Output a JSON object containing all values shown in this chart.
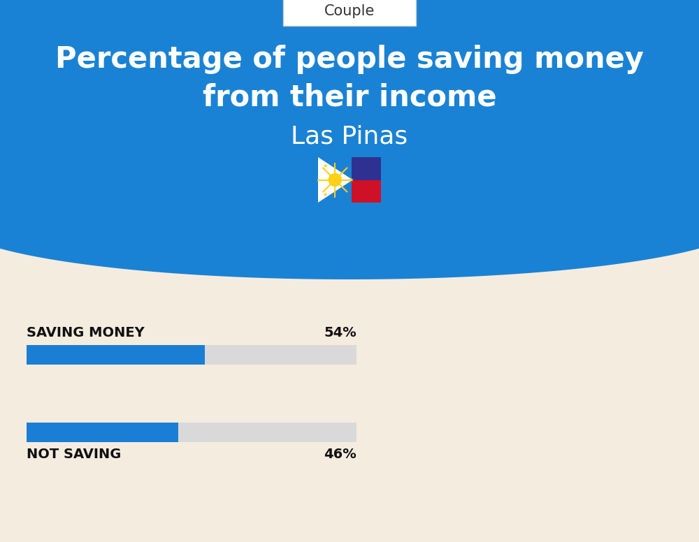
{
  "title_line1": "Percentage of people saving money",
  "title_line2": "from their income",
  "subtitle": "Las Pinas",
  "tab_label": "Couple",
  "saving_label": "SAVING MONEY",
  "saving_value": 54,
  "saving_pct_text": "54%",
  "not_saving_label": "NOT SAVING",
  "not_saving_value": 46,
  "not_saving_pct_text": "46%",
  "bar_color": "#1a7fd4",
  "bar_bg_color": "#d9d9d9",
  "bg_top_color": "#1a82d4",
  "bg_bottom_color": "#f5ece0",
  "title_color": "#ffffff",
  "subtitle_color": "#ffffff",
  "label_color": "#111111",
  "tab_bg_color": "#ffffff",
  "tab_text_color": "#333333",
  "fig_width": 10.0,
  "fig_height": 7.76
}
